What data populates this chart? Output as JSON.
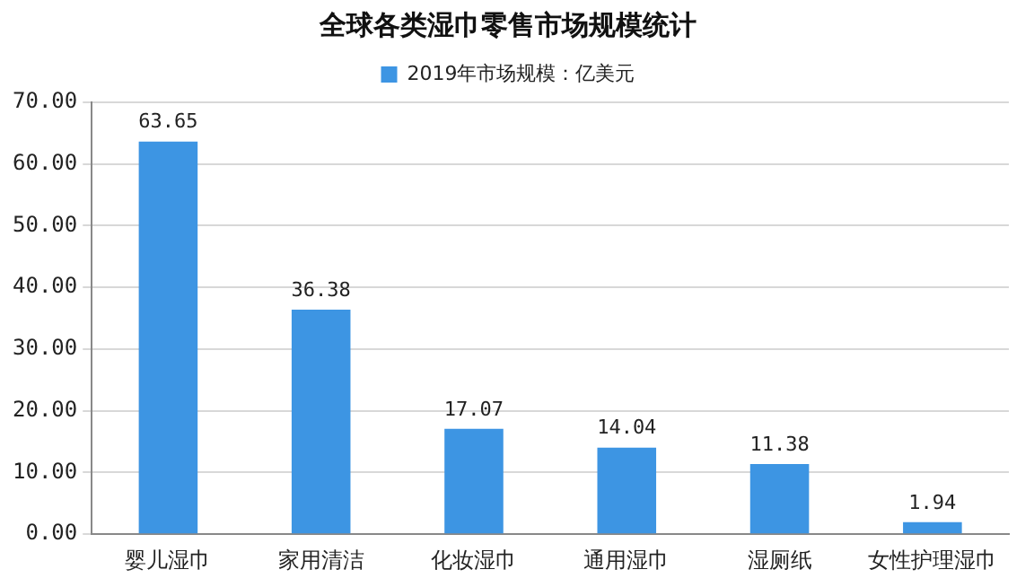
{
  "chart_data": {
    "type": "bar",
    "title": "全球各类湿巾零售市场规模统计",
    "categories": [
      "婴儿湿巾",
      "家用清洁",
      "化妆湿巾",
      "通用湿巾",
      "湿厕纸",
      "女性护理湿巾"
    ],
    "series": [
      {
        "name": "2019年市场规模：亿美元",
        "color": "#3d95e3",
        "values": [
          63.65,
          36.38,
          17.07,
          14.04,
          11.38,
          1.94
        ]
      }
    ],
    "ylim": [
      0,
      70
    ],
    "yticks": [
      {
        "value": 0,
        "label": "0.00"
      },
      {
        "value": 10,
        "label": "10.00"
      },
      {
        "value": 20,
        "label": "20.00"
      },
      {
        "value": 30,
        "label": "30.00"
      },
      {
        "value": 40,
        "label": "40.00"
      },
      {
        "value": 50,
        "label": "50.00"
      },
      {
        "value": 60,
        "label": "60.00"
      },
      {
        "value": 70,
        "label": "70.00"
      }
    ],
    "grid": "y",
    "legend": "top",
    "data_labels": true
  }
}
